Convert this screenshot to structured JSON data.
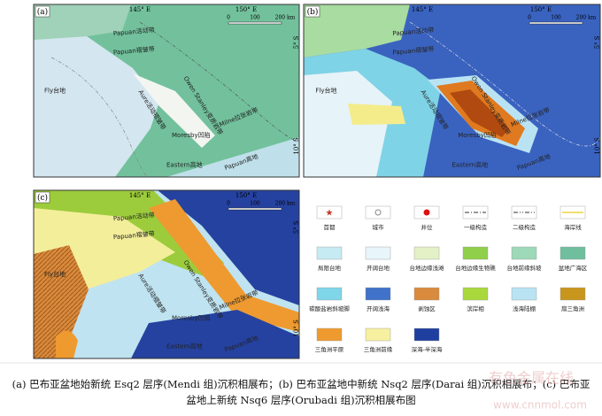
{
  "panels": [
    {
      "label": "(a)",
      "lon_ticks": [
        "145° E",
        "150° E"
      ],
      "lat_ticks": [
        "5° S",
        "10° S"
      ],
      "scale": [
        "0",
        "100",
        "200 km"
      ],
      "regions": [
        "Papuan活动带",
        "Papuan褶皱带",
        "Fly台地",
        "Aure活动褶皱带",
        "Owen Stanley变质岩带",
        "Moresby凹陷",
        "Milne拉张岩带",
        "Eastern高地",
        "Papuan高地"
      ]
    },
    {
      "label": "(b)",
      "lon_ticks": [
        "145° E",
        "150° E"
      ],
      "lat_ticks": [
        "5° S",
        "10° S"
      ],
      "scale": [
        "0",
        "100",
        "200 km"
      ],
      "regions": [
        "Papuan活动带",
        "Papuan褶皱带",
        "Fly台地",
        "Aure活动褶皱带",
        "Owen Stanley变质岩带",
        "Moresby凹陷",
        "Milne拉张岩带",
        "Eastern高地",
        "Papuan高地"
      ]
    },
    {
      "label": "(c)",
      "lon_ticks": [
        "145° E",
        "150° E"
      ],
      "lat_ticks": [
        "5° S",
        "10° S"
      ],
      "scale": [
        "0",
        "100",
        "200 km"
      ],
      "regions": [
        "Papuan活动带",
        "Papuan褶皱带",
        "Fly台地",
        "Aure活动褶皱带",
        "Owen Stanley变质岩带",
        "Moresby凹陷",
        "Milne拉张岩带",
        "Eastern高地",
        "Papuan高地"
      ]
    }
  ],
  "legend": [
    {
      "label": "首都"
    },
    {
      "label": "城市"
    },
    {
      "label": "井位"
    },
    {
      "label": "一级构造"
    },
    {
      "label": "二级构造"
    },
    {
      "label": "海岸线"
    },
    {
      "label": "局限台地",
      "color": "#c6ebf2"
    },
    {
      "label": "开阔台地",
      "color": "#e8f5fa"
    },
    {
      "label": "台地边缘浅滩",
      "color": "#e4f1c6"
    },
    {
      "label": "台地边缘生物礁",
      "color": "#8fcf4a"
    },
    {
      "label": "台地前缘斜坡",
      "color": "#9dd9b8"
    },
    {
      "label": "盆地广海区",
      "color": "#6fbf9e"
    },
    {
      "label": "碳酸盐岩斜坡脚",
      "color": "#7fd6e8"
    },
    {
      "label": "开阔浅海",
      "color": "#3f72c8"
    },
    {
      "label": "剥蚀区",
      "color": "#d98a3c"
    },
    {
      "label": "滨岸相",
      "color": "#a9d83c"
    },
    {
      "label": "浅海陆棚",
      "color": "#b9e3f3"
    },
    {
      "label": "扇三角洲",
      "color": "#c8961c"
    },
    {
      "label": "三角洲平原",
      "color": "#ef9a2e"
    },
    {
      "label": "三角洲前缘",
      "color": "#f6f0a0"
    },
    {
      "label": "深海-半深海",
      "color": "#1f3fa0"
    }
  ],
  "caption": [
    "(a) 巴布亚盆地始新统 Esq2 层序(Mendi 组)沉积相展布；(b) 巴布亚盆地中新统 Nsq2 层序(Darai 组)沉积相展布；(c) 巴布亚",
    "盆地上新统 Nsq6 层序(Orubadi 组)沉积相展布图"
  ],
  "watermark": [
    "有色金属在线",
    "www.cnnmol.com"
  ]
}
